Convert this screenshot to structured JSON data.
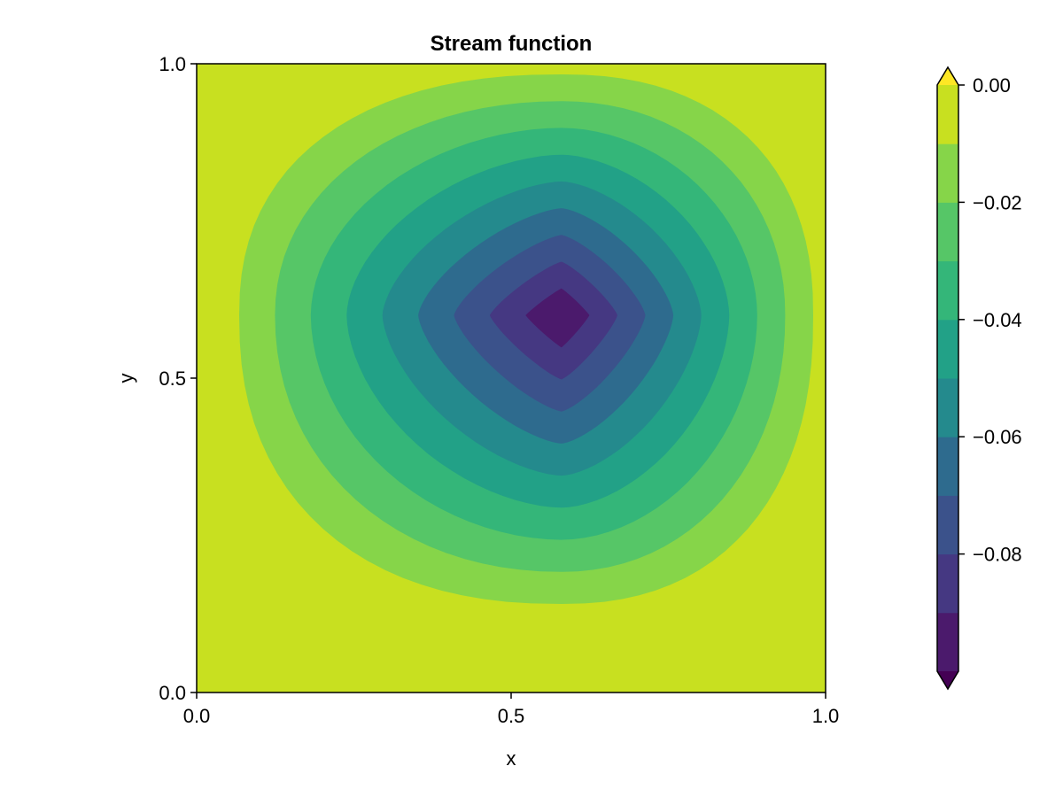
{
  "chart_data": {
    "type": "contourf",
    "title": "Stream function",
    "xlabel": "x",
    "ylabel": "y",
    "xlim": [
      0.0,
      1.0
    ],
    "ylim": [
      0.0,
      1.0
    ],
    "x_ticks": [
      "0.0",
      "0.5",
      "1.0"
    ],
    "y_ticks": [
      "0.0",
      "0.5",
      "1.0"
    ],
    "colorbar": {
      "ticks": [
        "0.00",
        "−0.02",
        "−0.04",
        "−0.06",
        "−0.08"
      ],
      "tick_values": [
        0.0,
        -0.02,
        -0.04,
        -0.06,
        -0.08
      ],
      "level_edges": [
        -0.1,
        -0.09,
        -0.08,
        -0.07,
        -0.06,
        -0.05,
        -0.04,
        -0.03,
        -0.02,
        -0.01,
        0.0
      ],
      "extend": "both",
      "colormap": "viridis"
    },
    "vortex_center": [
      0.58,
      0.6
    ],
    "min_value": -0.1,
    "colors": [
      "#4b1a6c",
      "#453882",
      "#3b528b",
      "#2e6b8e",
      "#248a8d",
      "#22a187",
      "#34b679",
      "#56c667",
      "#86d549",
      "#c8e020"
    ],
    "extend_low_color": "#440154",
    "extend_high_color": "#fde725"
  }
}
